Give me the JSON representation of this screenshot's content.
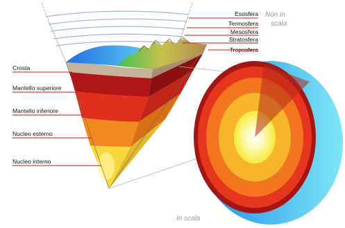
{
  "left_labels": {
    "crust": "Crosta",
    "upper_mantle": "Mantello superiore",
    "lower_mantle": "Mantello inferiore",
    "outer_core": "Nucleo esterno",
    "inner_core": "Nucleo interno"
  },
  "atmosphere_labels": {
    "exosphere": "Esosfera",
    "thermosphere": "Termosfera",
    "mesosphere": "Mesosfera",
    "stratosphere": "Stratosfera",
    "troposphere": "Troposfera"
  },
  "notes": {
    "not_to_scale_line1": "Non in",
    "not_to_scale_line2": "scala",
    "to_scale": "In scala"
  }
}
